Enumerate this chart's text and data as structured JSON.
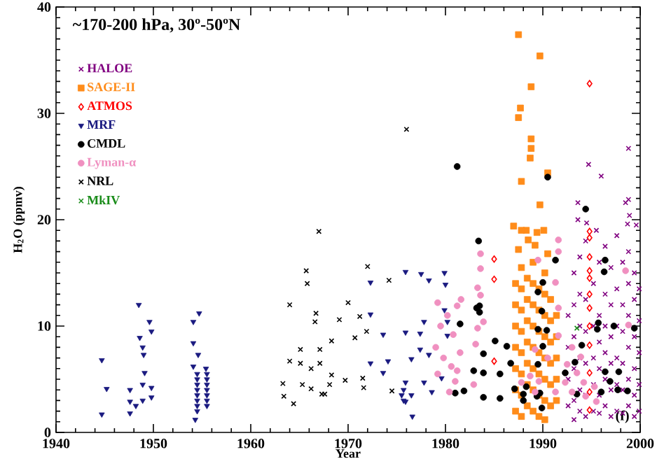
{
  "chart_data": {
    "type": "scatter",
    "title": "~170-200 hPa, 30º-50ºN",
    "xlabel": "Year",
    "ylabel": "H$_{2}$O (ppmv)",
    "xlim": [
      1940,
      2000
    ],
    "ylim": [
      0,
      40
    ],
    "xticks": [
      1940,
      1950,
      1960,
      1970,
      1980,
      1990,
      2000
    ],
    "yticks": [
      0,
      10,
      20,
      30,
      40
    ],
    "legend": "top left",
    "annotations": [
      "(f)"
    ],
    "series": [
      {
        "name": "HALOE",
        "color": "#800080",
        "marker": "cross",
        "x": [
          1998.8,
          1994.7,
          1996.0,
          1993.6,
          1998.5,
          1998.9,
          1993.6,
          1994.5,
          1995.5,
          1998.7,
          1999.6,
          1998.8,
          1992.6,
          1992.6,
          1992.6,
          1992.6,
          1993.2,
          1993.2,
          1993.2,
          1993.2,
          1993.2,
          1993.2,
          1993.8,
          1993.8,
          1993.8,
          1993.8,
          1993.8,
          1993.8,
          1994.4,
          1994.4,
          1994.4,
          1994.4,
          1994.4,
          1994.4,
          1995.2,
          1995.2,
          1995.2,
          1995.2,
          1995.2,
          1995.8,
          1995.8,
          1995.8,
          1995.8,
          1995.8,
          1995.8,
          1996.4,
          1996.4,
          1996.4,
          1996.4,
          1996.4,
          1996.4,
          1997.0,
          1997.0,
          1997.0,
          1997.0,
          1997.0,
          1997.0,
          1997.6,
          1997.6,
          1997.6,
          1997.6,
          1997.6,
          1997.6,
          1998.2,
          1998.2,
          1998.2,
          1998.2,
          1998.2,
          1998.2,
          1998.8,
          1998.8,
          1998.8,
          1998.8,
          1998.8,
          1998.8,
          1999.4,
          1999.4,
          1999.4,
          1999.4,
          1999.4,
          1999.4,
          1999.9,
          1999.9,
          1999.9,
          1999.9,
          1999.9
        ],
        "values": [
          26.7,
          25.2,
          24.1,
          21.6,
          21.6,
          20.4,
          20.0,
          19.7,
          19.0,
          19.6,
          19.5,
          21.9,
          2.5,
          5,
          8,
          11,
          1.2,
          3,
          6,
          9,
          12,
          15,
          2,
          4,
          7,
          10,
          13,
          16.5,
          1.5,
          3.5,
          6.5,
          9.5,
          12.5,
          18,
          2,
          4.5,
          7,
          10,
          14,
          1.8,
          3.5,
          6,
          8.5,
          11,
          16,
          2.5,
          5,
          7.5,
          10,
          13,
          17.5,
          1.5,
          4,
          6.5,
          9,
          12,
          15.5,
          2,
          4.5,
          7,
          10,
          13.5,
          18.5,
          1.8,
          4,
          6.5,
          9.5,
          12,
          16,
          2.5,
          5,
          8,
          11,
          14,
          17,
          1.5,
          3.5,
          6,
          9,
          12.5,
          15,
          2,
          4.5,
          7.5,
          10.5,
          13.5
        ]
      },
      {
        "name": "SAGE-II",
        "color": "#ff8c1a",
        "marker": "square",
        "x": [
          1987.5,
          1989.7,
          1988.8,
          1987.7,
          1987.5,
          1988.8,
          1988.8,
          1988.7,
          1987.8,
          1990.5,
          1989.7,
          1987.0,
          1988.3,
          1990.1,
          1989.4,
          1987.8,
          1988.5,
          1989.2,
          1987.5,
          1990.5,
          1987.2,
          1987.2,
          1987.2,
          1987.2,
          1987.2,
          1987.2,
          1987.2,
          1987.8,
          1987.8,
          1987.8,
          1987.8,
          1987.8,
          1987.8,
          1987.8,
          1987.8,
          1988.4,
          1988.4,
          1988.4,
          1988.4,
          1988.4,
          1988.4,
          1988.4,
          1989.0,
          1989.0,
          1989.0,
          1989.0,
          1989.0,
          1989.0,
          1989.0,
          1989.0,
          1989.6,
          1989.6,
          1989.6,
          1989.6,
          1989.6,
          1989.6,
          1989.6,
          1990.2,
          1990.2,
          1990.2,
          1990.2,
          1990.2,
          1990.2,
          1990.2,
          1990.2,
          1990.8,
          1990.8,
          1990.8,
          1990.8,
          1990.8,
          1990.8,
          1991.4,
          1991.4,
          1991.4,
          1991.4,
          1991.4
        ],
        "values": [
          37.4,
          35.4,
          32.5,
          30.5,
          29.6,
          27.6,
          26.7,
          25.8,
          23.6,
          24.4,
          21.4,
          19.4,
          19.0,
          19.0,
          18.8,
          19.0,
          18.1,
          17.6,
          17.2,
          16.8,
          2,
          4,
          6,
          8,
          10,
          12,
          14,
          1.5,
          3.5,
          5.5,
          7.5,
          9.5,
          11.5,
          13.5,
          15.5,
          2.5,
          4.5,
          6.5,
          8.5,
          10.5,
          12.5,
          14.5,
          2,
          4,
          6,
          8,
          10,
          12,
          14,
          16,
          1.5,
          3.5,
          5.5,
          7.5,
          9.5,
          11.5,
          13.5,
          1.2,
          3,
          5,
          7,
          9,
          11,
          13,
          15,
          2.5,
          4.5,
          6.5,
          8.5,
          10.5,
          12.5,
          3,
          5,
          7,
          9,
          11
        ]
      },
      {
        "name": "ATMOS",
        "color": "#ff0000",
        "marker": "diamond",
        "x": [
          1994.8,
          1994.8,
          1985.0,
          1985.0,
          1985.0,
          1994.8,
          1994.8,
          1994.8,
          1994.8,
          1994.8,
          1994.8,
          1994.8,
          1994.8,
          1994.8,
          1994.8,
          1994.8
        ],
        "values": [
          32.8,
          18.9,
          16.3,
          14.4,
          6.7,
          18.3,
          16.5,
          15.2,
          14.5,
          13.0,
          11.7,
          10.0,
          8.2,
          5.6,
          3.8,
          2.1
        ]
      },
      {
        "name": "MRF",
        "color": "#1a1a80",
        "marker": "triangle",
        "x": [
          1944.7,
          1945.2,
          1944.7,
          1948.5,
          1949.6,
          1949.8,
          1948.6,
          1948.9,
          1949.0,
          1949.1,
          1948.9,
          1949.8,
          1947.6,
          1947.6,
          1947.6,
          1949.8,
          1948.9,
          1948.2,
          1954.7,
          1954.1,
          1954.1,
          1954.6,
          1954.1,
          1955.4,
          1954.5,
          1954.5,
          1954.5,
          1954.5,
          1954.5,
          1954.5,
          1954.5,
          1954.5,
          1954.3,
          1955.5,
          1955.5,
          1955.5,
          1955.5,
          1955.5,
          1955.5,
          1955.5,
          1972.3,
          1972.3,
          1972.3,
          1973.6,
          1973.6,
          1974.1,
          1975.9,
          1975.9,
          1975.9,
          1975.9,
          1976.6,
          1976.5,
          1977.5,
          1977.4,
          1977.8,
          1977.4,
          1978.3,
          1978.3,
          1978.6,
          1979.9,
          1980.0,
          1979.9,
          1980.2,
          1980.2,
          1979.6,
          1975.7,
          1975.7,
          1975.5,
          1976.5,
          1977.8
        ],
        "values": [
          6.8,
          4.1,
          1.7,
          12.0,
          10.4,
          9.5,
          8.9,
          8.0,
          7.3,
          5.6,
          4.5,
          4.2,
          4.0,
          2.9,
          1.8,
          3.3,
          3.0,
          2.5,
          11.2,
          10.4,
          8.4,
          7.3,
          6.2,
          6.0,
          5.5,
          5.0,
          4.5,
          4.0,
          3.5,
          3.0,
          2.5,
          2.0,
          1.2,
          5.5,
          5.0,
          4.5,
          4.0,
          3.5,
          3.0,
          2.5,
          14.1,
          11.1,
          6.5,
          9.2,
          5.6,
          6.7,
          15.1,
          9.4,
          4.7,
          2.9,
          1.5,
          6.9,
          14.9,
          9.3,
          10.4,
          7.8,
          14.3,
          7.3,
          3.8,
          15.0,
          13.9,
          11.5,
          10.4,
          9.1,
          5.1,
          4.0,
          3.0,
          3.5,
          3.5,
          4.7
        ]
      },
      {
        "name": "CMDL",
        "color": "#000000",
        "marker": "circle",
        "x": [
          1981.2,
          1990.5,
          1994.4,
          1983.4,
          1991.3,
          1996.4,
          1996.3,
          1989.5,
          1990.0,
          1983.2,
          1983.5,
          1983.5,
          1981.5,
          1985.1,
          1986.3,
          1983.9,
          1982.9,
          1983.9,
          1985.6,
          1981.9,
          1981.0,
          1983.9,
          1985.6,
          1986.7,
          1988.0,
          1989.5,
          1989.9,
          1990.4,
          1990.0,
          1989.5,
          1988.3,
          1989.7,
          1992.3,
          1994.0,
          1995.6,
          1995.7,
          1997.3,
          1999.4,
          1996.4,
          1997.8,
          1996.9,
          1997.7,
          1998.7,
          1996.0,
          1993.5,
          1993.3,
          1989.9,
          1988.0,
          1987.1,
          1989.4
        ],
        "values": [
          25.0,
          24.0,
          21.0,
          18.0,
          16.2,
          16.2,
          15.1,
          13.2,
          14.1,
          11.7,
          11.9,
          11.3,
          10.2,
          8.6,
          8.1,
          7.4,
          5.8,
          5.6,
          5.5,
          3.9,
          3.7,
          3.3,
          3.2,
          6.5,
          3.6,
          9.7,
          11.4,
          9.6,
          8.1,
          6.4,
          4.3,
          3.7,
          5.6,
          8.2,
          9.7,
          10.3,
          10.0,
          9.8,
          5.7,
          5.7,
          4.8,
          4.0,
          3.9,
          3.8,
          3.6,
          6.6,
          2.3,
          3.0,
          4.1,
          3.4
        ]
      },
      {
        "name": "Lyman-α",
        "color": "#f090c0",
        "marker": "circle",
        "x": [
          1981.2,
          1983.6,
          1983.6,
          1983.3,
          1983.6,
          1983.9,
          1983.3,
          1983.1,
          1982.9,
          1991.6,
          1991.6,
          1989.5,
          1991.3,
          1991.6,
          1991.6,
          1990.5,
          1989.2,
          1987.8,
          1989.2,
          1988.7,
          1989.6,
          1991.3,
          1993.0,
          1993.9,
          1993.5,
          1994.2,
          1993.0,
          1994.4,
          1995.3,
          1995.5,
          1992.3,
          1992.5,
          1998.5,
          1998.8,
          1979.2,
          1979.5,
          1979.0,
          1980.2,
          1980.8,
          1981.5,
          1980.6,
          1979.2,
          1981.0,
          1980.4,
          1981.6,
          1979.8,
          1981.2
        ],
        "values": [
          11.9,
          16.8,
          15.4,
          13.6,
          12.9,
          10.4,
          9.8,
          8.3,
          4.5,
          18.1,
          17.0,
          16.2,
          14.1,
          11.7,
          9.1,
          7.0,
          7.8,
          4.7,
          3.8,
          5.3,
          4.8,
          3.8,
          8.0,
          7.1,
          5.6,
          4.7,
          3.8,
          3.4,
          4.3,
          2.9,
          4.7,
          6.4,
          15.2,
          10.1,
          12.2,
          10.0,
          8.0,
          11.0,
          9.2,
          7.5,
          6.2,
          5.5,
          4.8,
          3.8,
          12.5,
          7.0,
          5.8
        ]
      },
      {
        "name": "NRL",
        "color": "#000000",
        "marker": "cross",
        "x": [
          1967.0,
          1965.7,
          1965.8,
          1964.0,
          1966.7,
          1966.6,
          1964.0,
          1965.1,
          1965.1,
          1966.2,
          1967.1,
          1968.3,
          1967.1,
          1963.3,
          1963.4,
          1964.4,
          1965.3,
          1966.2,
          1967.3,
          1968.3,
          1968.1,
          1972.0,
          1974.2,
          1970.0,
          1969.1,
          1971.2,
          1971.9,
          1970.7,
          1969.7,
          1971.5,
          1971.6,
          1974.5,
          1967.6,
          1976.0
        ],
        "values": [
          18.9,
          15.2,
          14.0,
          12.0,
          11.2,
          10.4,
          6.7,
          7.8,
          6.5,
          6.0,
          6.5,
          8.6,
          7.8,
          4.6,
          3.4,
          2.7,
          4.5,
          4.1,
          3.6,
          5.4,
          4.5,
          15.6,
          14.3,
          12.2,
          10.6,
          10.9,
          9.5,
          8.9,
          4.9,
          5.1,
          4.2,
          3.9,
          3.6,
          28.5
        ]
      },
      {
        "name": "MkIV",
        "color": "#1a8c1a",
        "marker": "cross",
        "x": [
          1993.5
        ],
        "values": [
          9.8
        ]
      }
    ]
  }
}
